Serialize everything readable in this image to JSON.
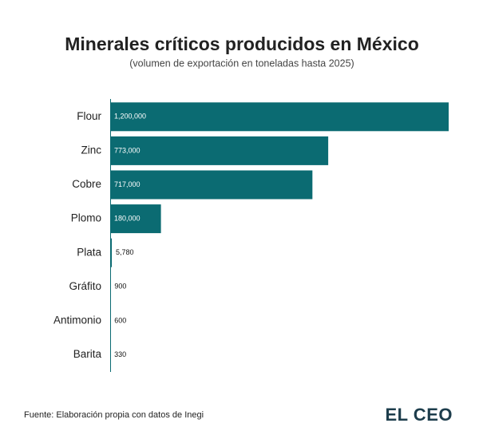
{
  "chart_data": {
    "type": "hbar",
    "title": "Minerales críticos producidos en México",
    "subtitle": "(volumen de exportación en toneladas hasta 2025)",
    "categories": [
      "Flour",
      "Zinc",
      "Cobre",
      "Plomo",
      "Plata",
      "Gráfito",
      "Antimonio",
      "Barita"
    ],
    "values": [
      1200000,
      773000,
      717000,
      180000,
      5780,
      900,
      600,
      330
    ],
    "value_labels": [
      "1,200,000",
      "773,000",
      "717,000",
      "180,000",
      "5,780",
      "900",
      "600",
      "330"
    ],
    "color": "#0b6b72"
  },
  "footer": {
    "source": "Fuente: Elaboración propia con datos de Inegi",
    "logo": "EL CEO"
  }
}
